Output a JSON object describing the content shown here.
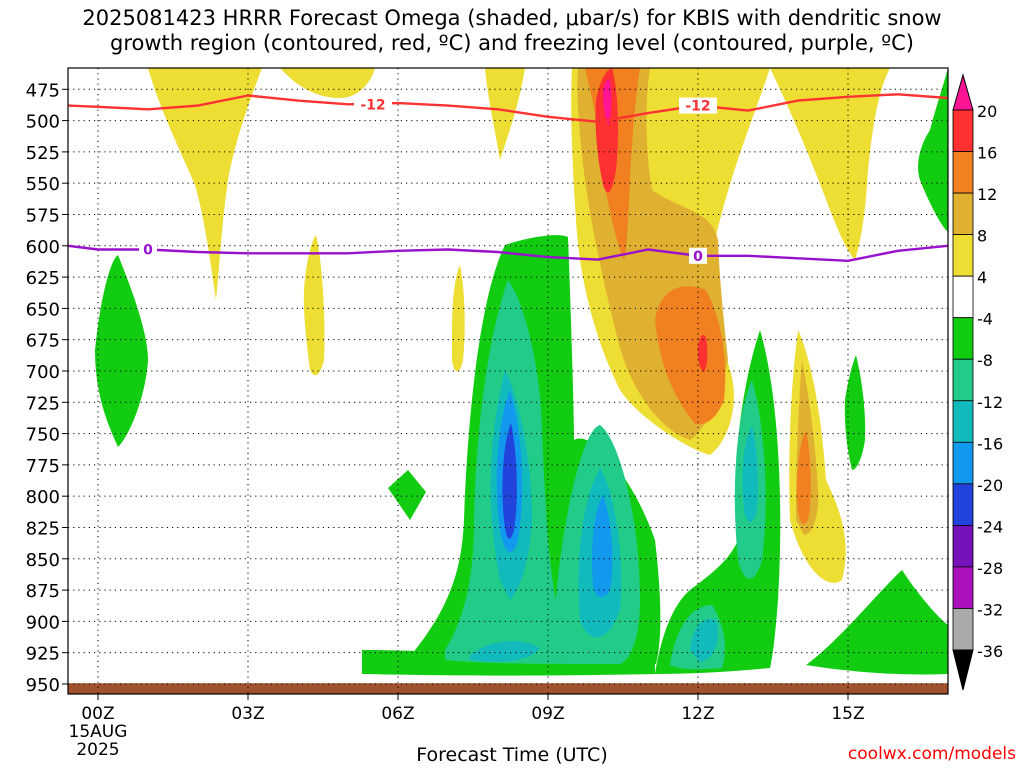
{
  "title_line1": "2025081423 HRRR Forecast Omega (shaded, μbar/s) for KBIS with dendritic snow",
  "title_line2": "growth region (contoured, red, ºC) and freezing level (contoured, purple, ºC)",
  "credit": "coolwx.com/models",
  "chart_data": {
    "type": "heatmap",
    "xlabel": "Forecast Time (UTC)",
    "x_ticks": [
      {
        "hour": 0,
        "label": "00Z",
        "sub1": "15AUG",
        "sub2": "2025"
      },
      {
        "hour": 3,
        "label": "03Z"
      },
      {
        "hour": 6,
        "label": "06Z"
      },
      {
        "hour": 9,
        "label": "09Z"
      },
      {
        "hour": 12,
        "label": "12Z"
      },
      {
        "hour": 15,
        "label": "15Z"
      }
    ],
    "xlim": [
      -0.6,
      17
    ],
    "y_ticks": [
      475,
      500,
      525,
      550,
      575,
      600,
      625,
      650,
      675,
      700,
      725,
      750,
      775,
      800,
      825,
      850,
      875,
      900,
      925,
      950
    ],
    "ylim": [
      458,
      958
    ],
    "grid": true,
    "colorbar": {
      "levels": [
        -36,
        -32,
        -28,
        -24,
        -20,
        -16,
        -12,
        -8,
        -4,
        4,
        8,
        12,
        16,
        20
      ],
      "labels": [
        "20",
        "16",
        "12",
        "8",
        "4",
        "-4",
        "-8",
        "-12",
        "-16",
        "-20",
        "-24",
        "-28",
        "-32",
        "-36"
      ],
      "colors": [
        "#ff1493",
        "#ff3030",
        "#f08020",
        "#e0b030",
        "#eedd33",
        "#ffffff",
        "#11cc11",
        "#22cc88",
        "#11bbbb",
        "#1199ee",
        "#2244dd",
        "#7711bb",
        "#aa11bb",
        "#aaaaaa",
        "#000000"
      ]
    },
    "contours": [
      {
        "label": "-12",
        "color": "#ff3333",
        "points": [
          [
            -0.6,
            488
          ],
          [
            0,
            489
          ],
          [
            1,
            491
          ],
          [
            2,
            488
          ],
          [
            3,
            480
          ],
          [
            4,
            484
          ],
          [
            5,
            487
          ],
          [
            6,
            486
          ],
          [
            7,
            488
          ],
          [
            8,
            491
          ],
          [
            9,
            497
          ],
          [
            10,
            501
          ],
          [
            11,
            494
          ],
          [
            12,
            488
          ],
          [
            13,
            492
          ],
          [
            14,
            484
          ],
          [
            15,
            481
          ],
          [
            16,
            479
          ],
          [
            17,
            482
          ]
        ]
      },
      {
        "label": "0",
        "color": "#9911cc",
        "points": [
          [
            -0.6,
            600
          ],
          [
            0,
            603
          ],
          [
            1,
            603
          ],
          [
            2,
            605
          ],
          [
            3,
            606
          ],
          [
            4,
            606
          ],
          [
            5,
            606
          ],
          [
            6,
            604
          ],
          [
            7,
            603
          ],
          [
            8,
            605
          ],
          [
            9,
            609
          ],
          [
            10,
            611
          ],
          [
            11,
            603
          ],
          [
            12,
            608
          ],
          [
            13,
            608
          ],
          [
            14,
            610
          ],
          [
            15,
            612
          ],
          [
            16,
            604
          ],
          [
            17,
            600
          ]
        ]
      }
    ],
    "contour_labels": [
      {
        "text": "-12",
        "x": 5.5,
        "y": 487,
        "color": "#ff3333"
      },
      {
        "text": "-12",
        "x": 12.0,
        "y": 488,
        "color": "#ff3333"
      },
      {
        "text": "0",
        "x": 1.0,
        "y": 603,
        "color": "#9911cc"
      },
      {
        "text": "0",
        "x": 12.0,
        "y": 608,
        "color": "#9911cc"
      }
    ],
    "terrain": {
      "color": "#a0522d",
      "top": 951
    }
  }
}
